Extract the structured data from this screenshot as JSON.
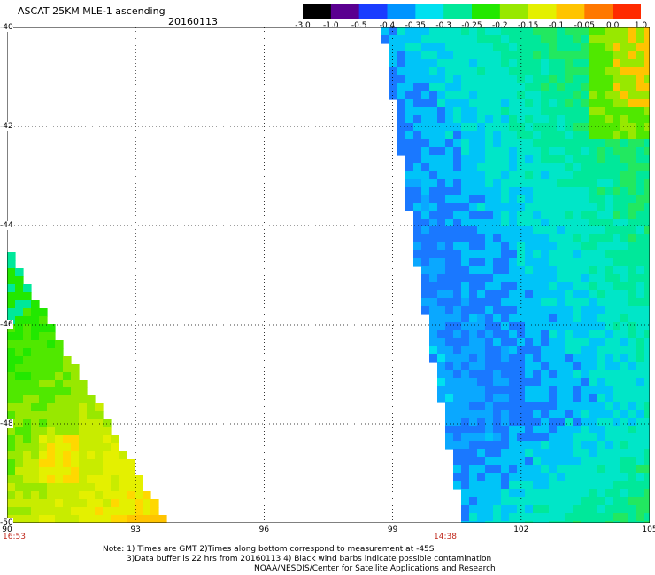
{
  "header": {
    "title": "ASCAT 25KM MLE-1 ascending",
    "date": "20160113"
  },
  "colorbar": {
    "labels": [
      "-3.0",
      "-1.0",
      "-0.5",
      "-0.4",
      "-0.35",
      "-0.3",
      "-0.25",
      "-0.2",
      "-0.15",
      "-0.1",
      "-0.05",
      "0.0",
      "1.0"
    ],
    "colors": [
      "#000000",
      "#5a0090",
      "#1a3cff",
      "#0094ff",
      "#00e0f0",
      "#00e89a",
      "#22e800",
      "#98e800",
      "#e4f000",
      "#ffc400",
      "#ff7800",
      "#ff2a00"
    ]
  },
  "axes": {
    "y_labels": [
      "-40",
      "-42",
      "-44",
      "-46",
      "-48",
      "-50"
    ],
    "x_labels": [
      "90",
      "93",
      "96",
      "99",
      "102",
      "105"
    ],
    "lat_range": [
      -50,
      -40
    ],
    "lon_range": [
      90,
      105
    ]
  },
  "time_labels": [
    "16:53",
    "14:38"
  ],
  "notes": {
    "line1": "Note: 1) Times are GMT 2)Times along bottom correspond to measurement at -45S",
    "line2": "3)Data buffer is 22 hrs from 20160113 4) Black wind barbs indicate possible contamination",
    "line3": "NOAA/NESDIS/Center for Satellite Applications and Research"
  },
  "swath_colors": {
    "east": [
      "#00e0f0",
      "#0aa8ff",
      "#1a78ff",
      "#00c4f8",
      "#00e6c8",
      "#00e89a",
      "#22e860",
      "#50e800",
      "#98e800",
      "#ffc400"
    ],
    "west": [
      "#00e89a",
      "#22e800",
      "#50e800",
      "#98e800",
      "#c8ec00",
      "#e4f000",
      "#ffd800",
      "#ffc400"
    ]
  }
}
